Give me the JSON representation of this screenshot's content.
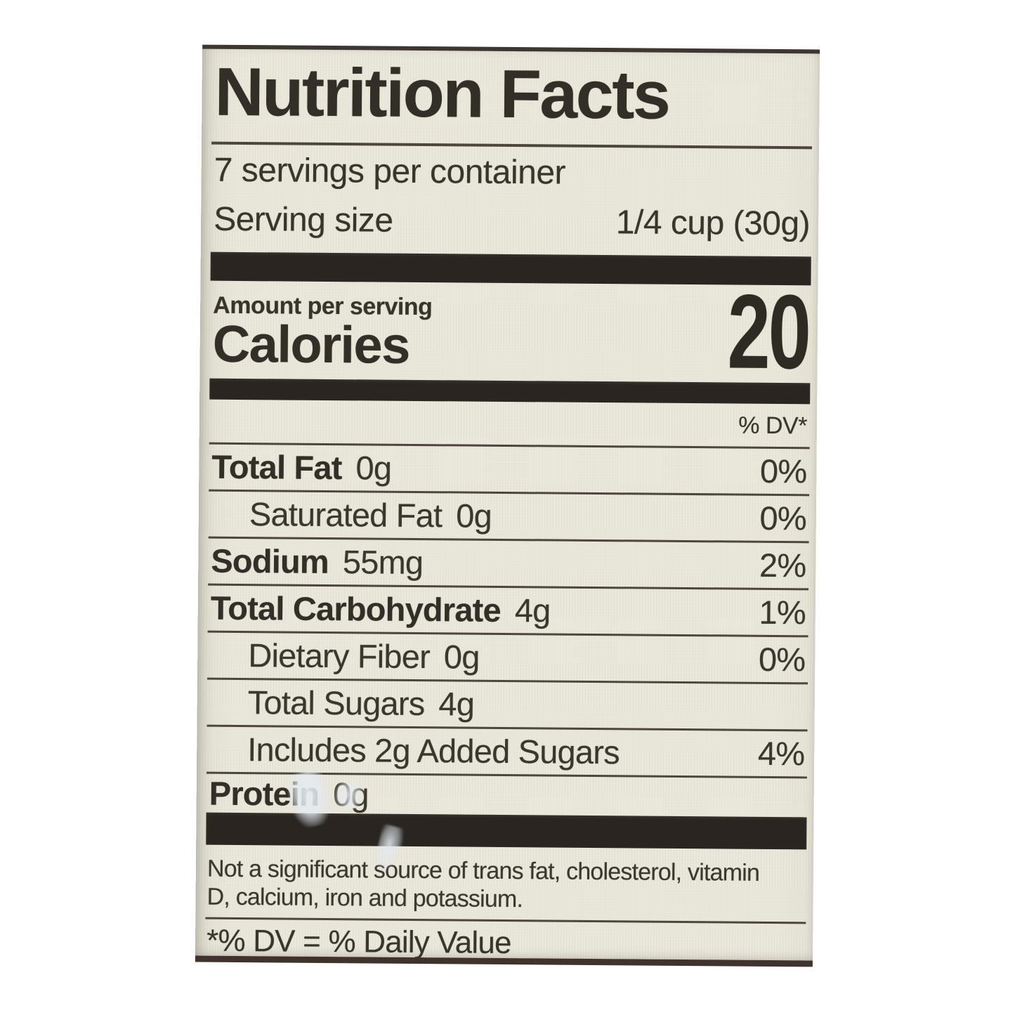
{
  "label": {
    "title": "Nutrition Facts",
    "servings_line": "7 servings per container",
    "serving_size": {
      "label": "Serving size",
      "value": "1/4 cup (30g)"
    },
    "calories": {
      "header": "Amount per serving",
      "label": "Calories",
      "value": "20"
    },
    "dv_header": "% DV*",
    "rows": [
      {
        "name": "Total Fat",
        "amount": "0g",
        "dv": "0%"
      },
      {
        "name": "Saturated Fat",
        "amount": "0g",
        "dv": "0%"
      },
      {
        "name": "Sodium",
        "amount": "55mg",
        "dv": "2%"
      },
      {
        "name": "Total Carbohydrate",
        "amount": "4g",
        "dv": "1%"
      },
      {
        "name": "Dietary Fiber",
        "amount": "0g",
        "dv": "0%"
      },
      {
        "name": "Total Sugars",
        "amount": "4g",
        "dv": ""
      },
      {
        "name": "Includes 2g Added Sugars",
        "amount": "",
        "dv": "4%"
      },
      {
        "name": "Protein",
        "amount": "0g",
        "dv": ""
      }
    ],
    "footnote": {
      "line1": "Not a significant source of trans fat, cholesterol, vitamin",
      "line2": "D, calcium, iron and potassium."
    },
    "dv_definition": "*% DV = % Daily Value",
    "colors": {
      "page_bg": "#ffffff",
      "label_bg": "#e8e5d9",
      "text": "#39342c",
      "bar": "#2a2521",
      "rule": "#4c463e"
    }
  }
}
